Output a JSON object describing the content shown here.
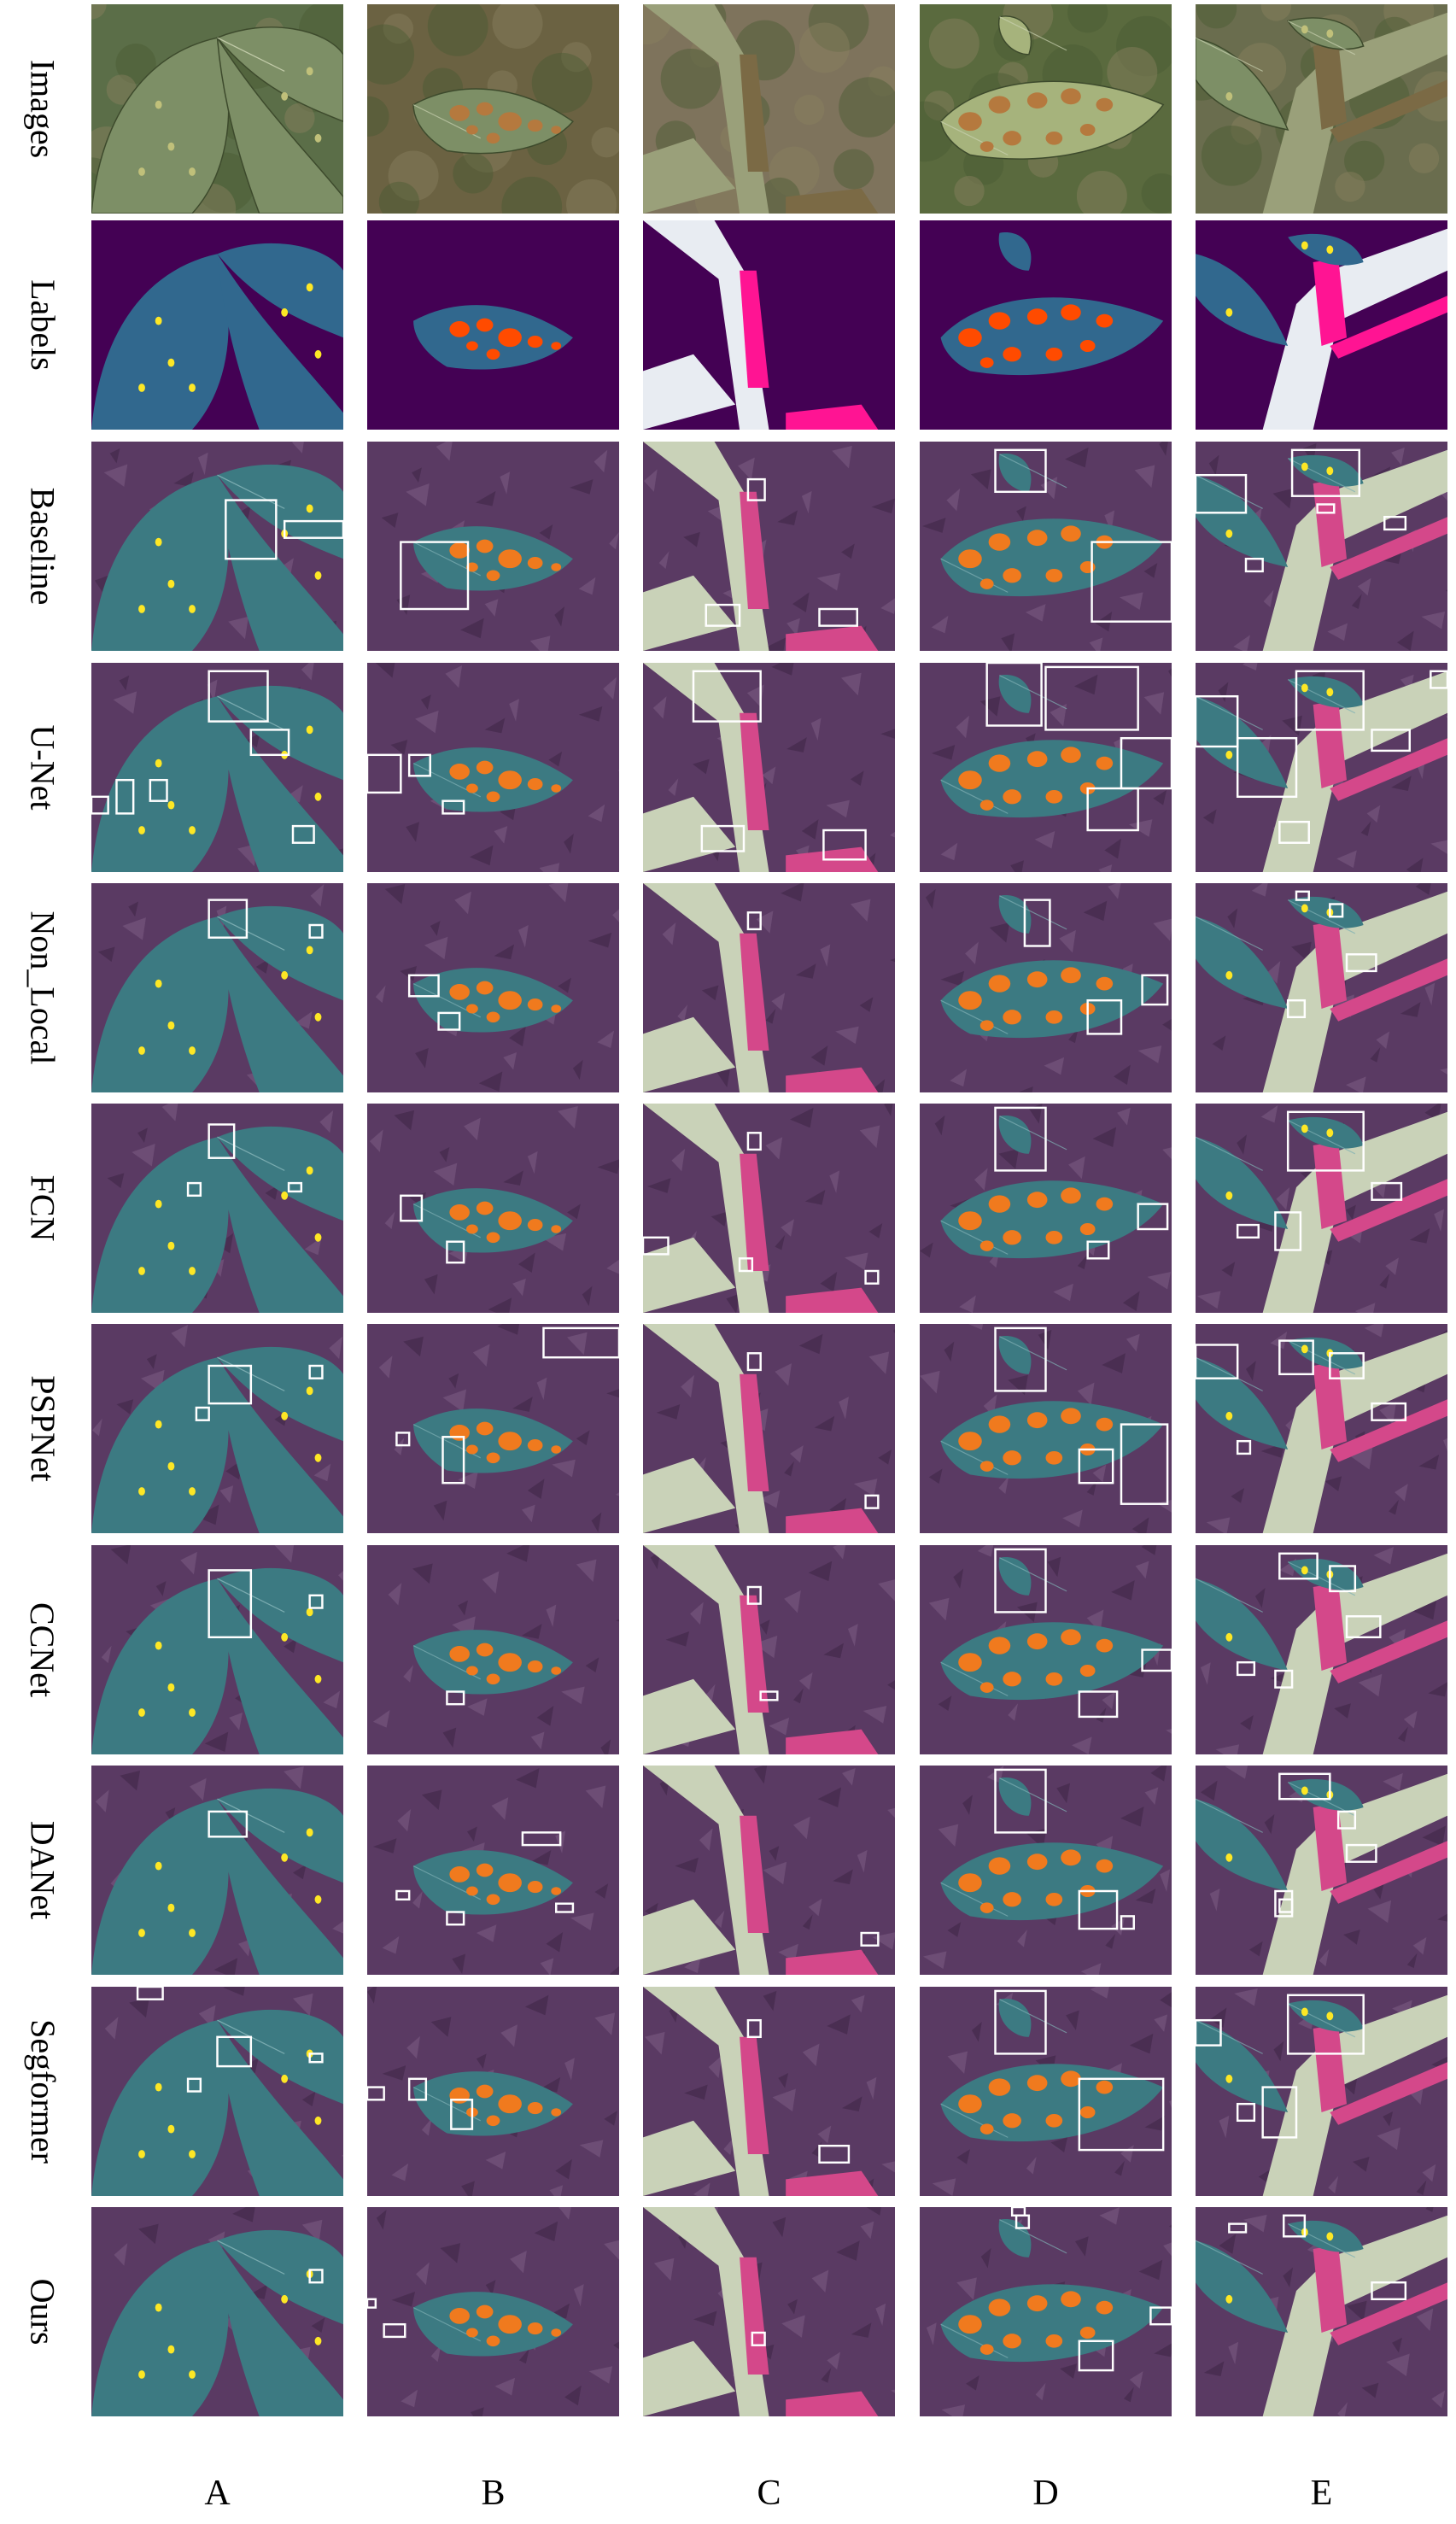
{
  "row_labels": [
    "Images",
    "Labels",
    "Baseline",
    "U-Net",
    "Non_Local",
    "FCN",
    "PSPNet",
    "CCNet",
    "DANet",
    "Segformer",
    "Ours"
  ],
  "column_labels": [
    "A",
    "B",
    "C",
    "D",
    "E"
  ],
  "colors": {
    "background_class": "#440154",
    "leaf_class": "#31688e",
    "spot_yellow": "#fde725",
    "lesion_orange": "#ff4b00",
    "stem_pink": "#ff1493",
    "stem_white": "#e8ecf2",
    "box_outline": "#ffffff"
  }
}
